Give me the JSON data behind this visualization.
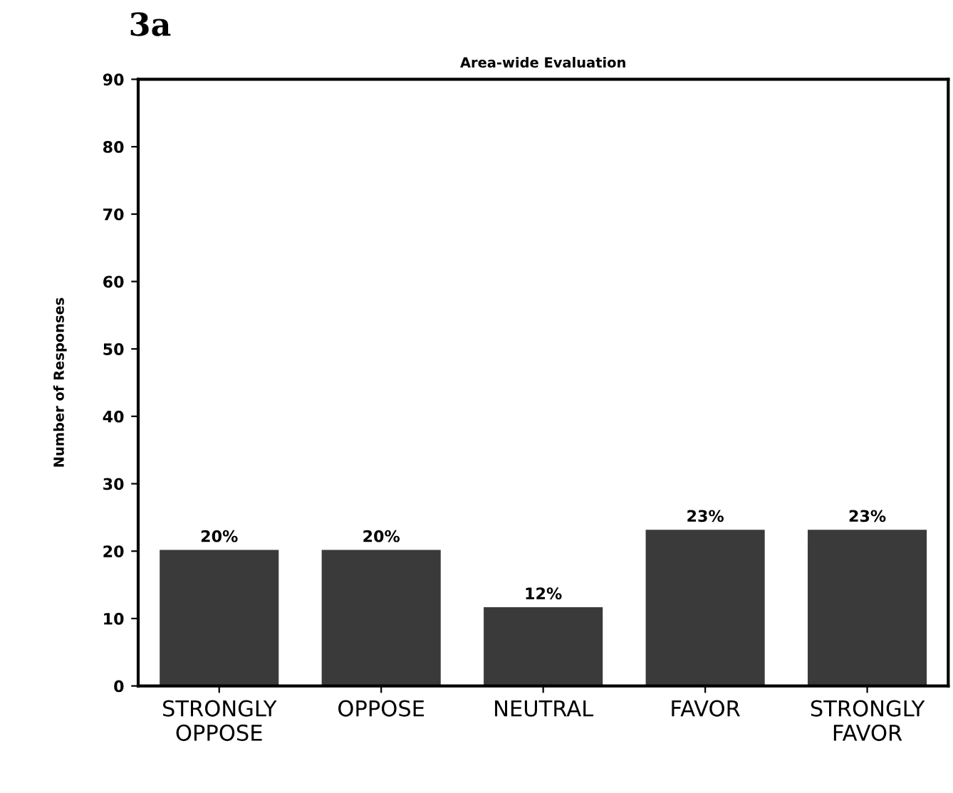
{
  "chart_data": {
    "type": "bar",
    "title": "Area-wide Evaluation",
    "ylabel": "Number of Responses",
    "annotations": [
      "3a"
    ],
    "categories": [
      "STRONGLY\nOPPOSE",
      "OPPOSE",
      "NEUTRAL",
      "FAVOR",
      "STRONGLY\nFAVOR"
    ],
    "values": [
      20,
      20,
      11.5,
      23,
      23
    ],
    "value_labels": [
      "20%",
      "20%",
      "12%",
      "23%",
      "23%"
    ],
    "color": "#3a3a3a",
    "ylim": [
      0,
      90
    ],
    "yticks": [
      0,
      10,
      20,
      30,
      40,
      50,
      60,
      70,
      80,
      90
    ],
    "grid": false,
    "legend": false
  }
}
